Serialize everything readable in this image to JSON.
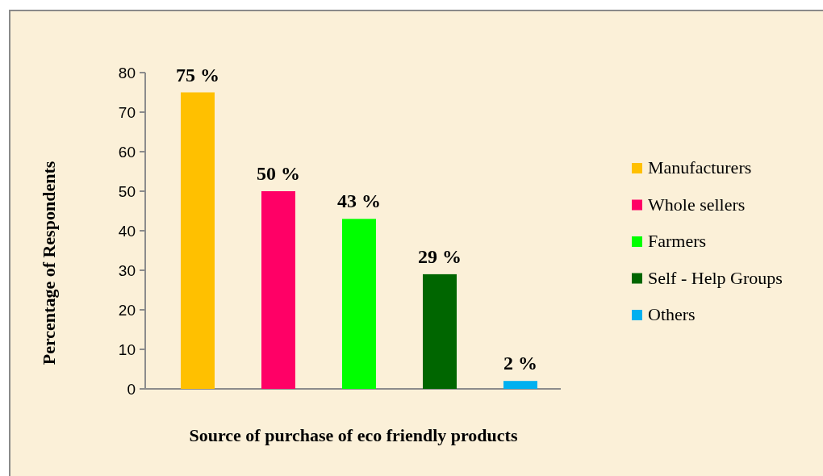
{
  "chart_data": {
    "type": "bar",
    "xlabel": "Source of purchase of eco friendly products",
    "ylabel": "Percentage of Respondents",
    "categories": [
      null
    ],
    "series": [
      {
        "name": "Manufacturers",
        "color": "#ffc000",
        "values": [
          75
        ],
        "value_labels": [
          "75 %"
        ]
      },
      {
        "name": "Whole sellers",
        "color": "#ff0066",
        "values": [
          50
        ],
        "value_labels": [
          "50 %"
        ]
      },
      {
        "name": "Farmers",
        "color": "#00ff00",
        "values": [
          43
        ],
        "value_labels": [
          "43 %"
        ]
      },
      {
        "name": "Self - Help Groups",
        "color": "#006600",
        "values": [
          29
        ],
        "value_labels": [
          "29 %"
        ]
      },
      {
        "name": "Others",
        "color": "#00b0f0",
        "values": [
          2
        ],
        "value_labels": [
          "2 %"
        ]
      }
    ],
    "ylim": [
      0,
      80
    ],
    "yticks": [
      0,
      10,
      20,
      30,
      40,
      50,
      60,
      70,
      80
    ],
    "tick_labels": "y",
    "legend": "right"
  }
}
